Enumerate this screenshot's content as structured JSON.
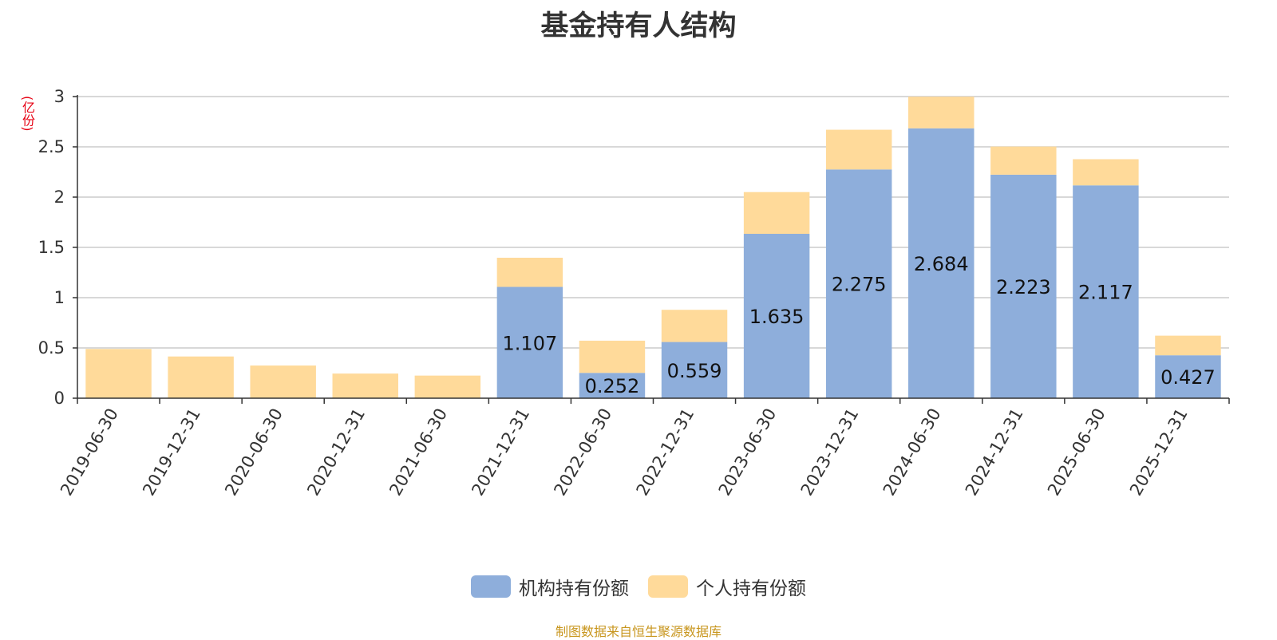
{
  "chart_data": {
    "type": "bar",
    "stacked": true,
    "title": "基金持有人结构",
    "y_unit": "(亿份)",
    "categories": [
      "2019-06-30",
      "2019-12-31",
      "2020-06-30",
      "2020-12-31",
      "2021-06-30",
      "2021-12-31",
      "2022-06-30",
      "2022-12-31",
      "2023-06-30",
      "2023-12-31",
      "2024-06-30",
      "2024-12-31",
      "2025-06-30",
      "2025-12-31"
    ],
    "series": [
      {
        "name": "机构持有份额",
        "color": "#8eaedb",
        "values": [
          0,
          0,
          0,
          0,
          0,
          1.107,
          0.252,
          0.559,
          1.635,
          2.275,
          2.684,
          2.223,
          2.117,
          0.427
        ],
        "labels": [
          "",
          "",
          "",
          "",
          "",
          "1.107",
          "0.252",
          "0.559",
          "1.635",
          "2.275",
          "2.684",
          "2.223",
          "2.117",
          "0.427"
        ]
      },
      {
        "name": "个人持有份额",
        "color": "#ffda9a",
        "values": [
          0.49,
          0.415,
          0.325,
          0.245,
          0.225,
          0.29,
          0.32,
          0.32,
          0.415,
          0.395,
          0.315,
          0.28,
          0.26,
          0.195
        ]
      }
    ],
    "yticks": [
      "0",
      "0.5",
      "1",
      "1.5",
      "2",
      "2.5",
      "3"
    ],
    "ylim": [
      0,
      3
    ],
    "grid": true,
    "legend_position": "bottom-center",
    "source": "制图数据来自恒生聚源数据库"
  }
}
